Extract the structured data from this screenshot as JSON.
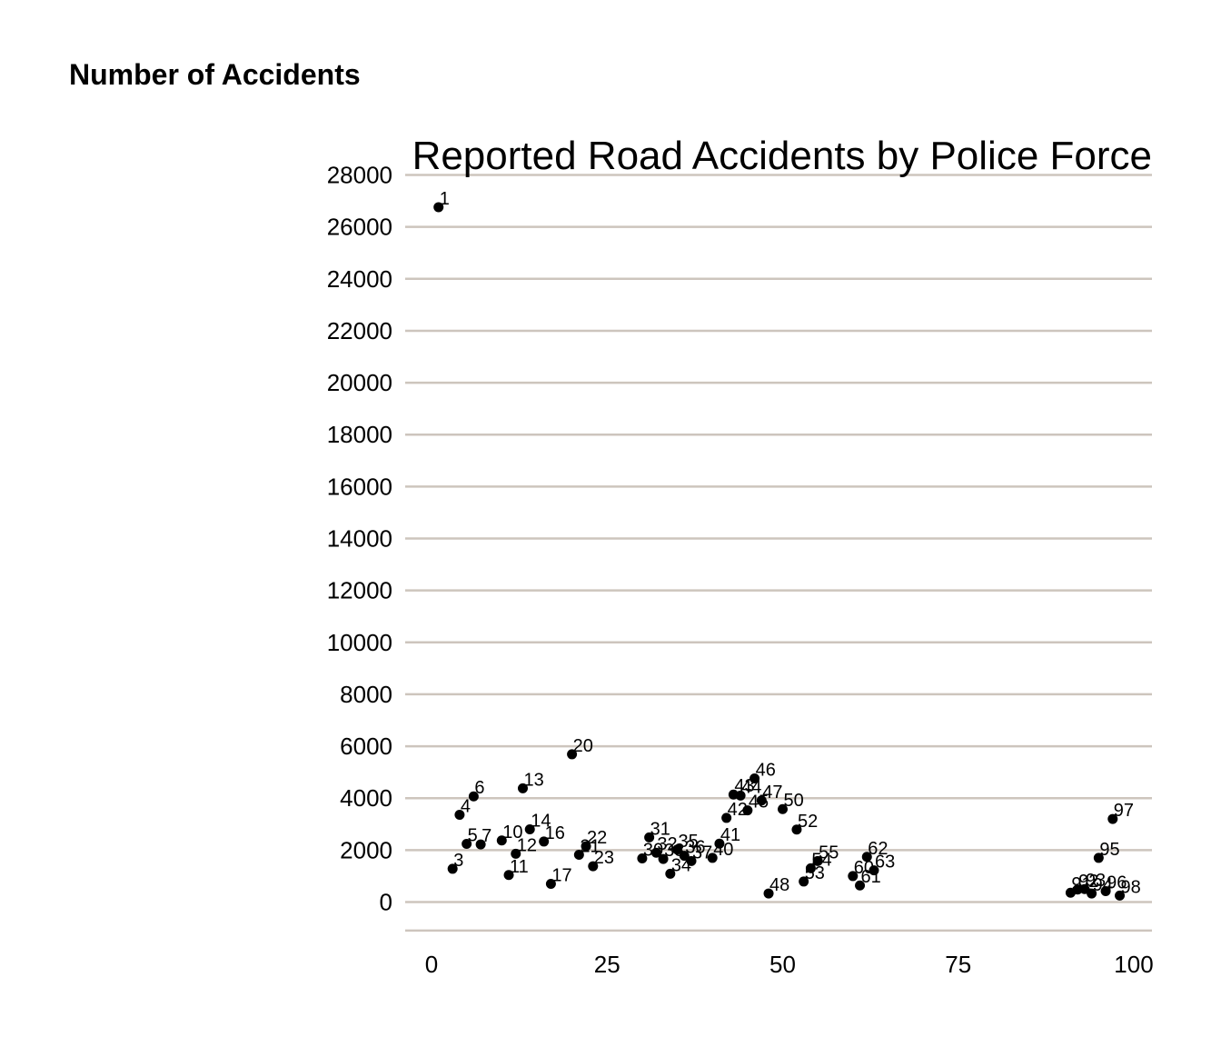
{
  "chart_data": {
    "type": "scatter",
    "title": "Reported Road Accidents by Police Force",
    "ylabel": "Number of Accidents",
    "xlabel": "",
    "xlim": [
      0,
      100
    ],
    "ylim": [
      -1100,
      28000
    ],
    "x_ticks": [
      0,
      25,
      50,
      75,
      100
    ],
    "y_ticks": [
      0,
      2000,
      4000,
      6000,
      8000,
      10000,
      12000,
      14000,
      16000,
      18000,
      20000,
      22000,
      24000,
      26000,
      28000
    ],
    "grid": "horizontal",
    "marker_color": "#000000",
    "grid_color": "#cdc5bd",
    "points": [
      {
        "x": 1,
        "y": 26760,
        "label": "1"
      },
      {
        "x": 3,
        "y": 1280,
        "label": "3"
      },
      {
        "x": 4,
        "y": 3360,
        "label": "4"
      },
      {
        "x": 5,
        "y": 2240,
        "label": "5"
      },
      {
        "x": 6,
        "y": 4070,
        "label": "6"
      },
      {
        "x": 7,
        "y": 2220,
        "label": "7"
      },
      {
        "x": 10,
        "y": 2370,
        "label": "10"
      },
      {
        "x": 11,
        "y": 1040,
        "label": "11"
      },
      {
        "x": 12,
        "y": 1860,
        "label": "12"
      },
      {
        "x": 13,
        "y": 4380,
        "label": "13"
      },
      {
        "x": 14,
        "y": 2800,
        "label": "14"
      },
      {
        "x": 16,
        "y": 2330,
        "label": "16"
      },
      {
        "x": 17,
        "y": 700,
        "label": "17"
      },
      {
        "x": 20,
        "y": 5690,
        "label": "20"
      },
      {
        "x": 21,
        "y": 1820,
        "label": "21"
      },
      {
        "x": 22,
        "y": 2150,
        "label": "22"
      },
      {
        "x": 23,
        "y": 1380,
        "label": "23"
      },
      {
        "x": 30,
        "y": 1680,
        "label": "30"
      },
      {
        "x": 31,
        "y": 2490,
        "label": "31"
      },
      {
        "x": 32,
        "y": 1900,
        "label": "32"
      },
      {
        "x": 33,
        "y": 1660,
        "label": "33"
      },
      {
        "x": 34,
        "y": 1090,
        "label": "34"
      },
      {
        "x": 35,
        "y": 2020,
        "label": "35"
      },
      {
        "x": 36,
        "y": 1780,
        "label": "36"
      },
      {
        "x": 37,
        "y": 1580,
        "label": "37"
      },
      {
        "x": 40,
        "y": 1700,
        "label": "40"
      },
      {
        "x": 41,
        "y": 2250,
        "label": "41"
      },
      {
        "x": 42,
        "y": 3240,
        "label": "42"
      },
      {
        "x": 43,
        "y": 4140,
        "label": "43"
      },
      {
        "x": 44,
        "y": 4100,
        "label": "44"
      },
      {
        "x": 45,
        "y": 3530,
        "label": "45"
      },
      {
        "x": 46,
        "y": 4760,
        "label": "46"
      },
      {
        "x": 47,
        "y": 3910,
        "label": "47"
      },
      {
        "x": 48,
        "y": 330,
        "label": "48"
      },
      {
        "x": 50,
        "y": 3580,
        "label": "50"
      },
      {
        "x": 52,
        "y": 2790,
        "label": "52"
      },
      {
        "x": 53,
        "y": 790,
        "label": "53"
      },
      {
        "x": 54,
        "y": 1300,
        "label": "54"
      },
      {
        "x": 55,
        "y": 1580,
        "label": "55"
      },
      {
        "x": 60,
        "y": 1000,
        "label": "60"
      },
      {
        "x": 61,
        "y": 640,
        "label": "61"
      },
      {
        "x": 62,
        "y": 1740,
        "label": "62"
      },
      {
        "x": 63,
        "y": 1220,
        "label": "63"
      },
      {
        "x": 91,
        "y": 360,
        "label": "91"
      },
      {
        "x": 92,
        "y": 480,
        "label": "92"
      },
      {
        "x": 93,
        "y": 500,
        "label": "93"
      },
      {
        "x": 94,
        "y": 330,
        "label": "94"
      },
      {
        "x": 95,
        "y": 1700,
        "label": "95"
      },
      {
        "x": 96,
        "y": 420,
        "label": "96"
      },
      {
        "x": 97,
        "y": 3200,
        "label": "97"
      },
      {
        "x": 98,
        "y": 250,
        "label": "98"
      }
    ]
  }
}
